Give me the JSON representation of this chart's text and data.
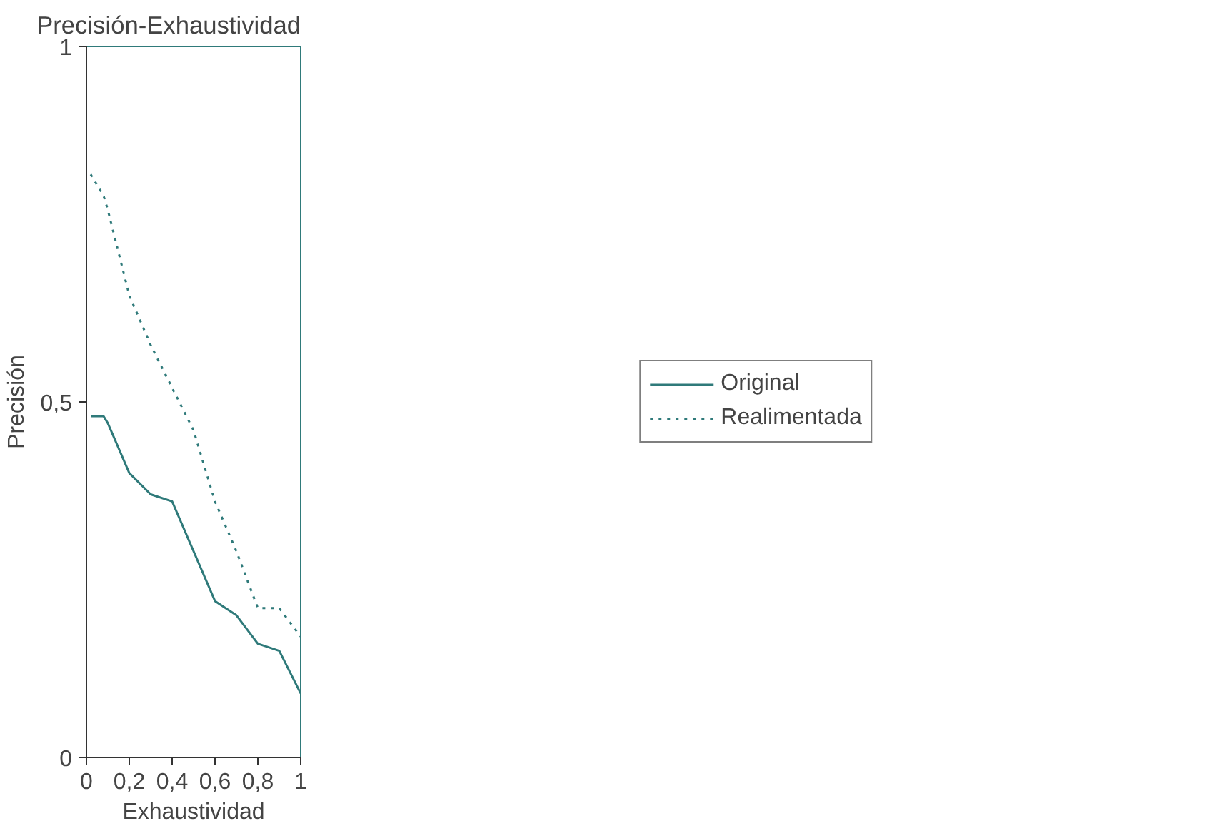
{
  "chart_data": {
    "type": "line",
    "title": "Precisión-Exhaustividad",
    "xlabel": "Exhaustividad",
    "ylabel": "Precisión",
    "x": [
      0.02,
      0.08,
      0.1,
      0.2,
      0.3,
      0.4,
      0.5,
      0.6,
      0.7,
      0.8,
      0.9,
      1.0
    ],
    "series": [
      {
        "name": "Original",
        "color": "#2f7a7a",
        "line_style": "solid",
        "values": [
          0.48,
          0.48,
          0.47,
          0.4,
          0.37,
          0.36,
          0.29,
          0.22,
          0.2,
          0.16,
          0.15,
          0.09
        ]
      },
      {
        "name": "Realimentada",
        "color": "#2f7a7a",
        "line_style": "dotted",
        "values": [
          0.82,
          0.79,
          0.77,
          0.65,
          0.58,
          0.52,
          0.46,
          0.36,
          0.29,
          0.21,
          0.21,
          0.17
        ]
      }
    ],
    "xlim": [
      0,
      1
    ],
    "ylim": [
      0,
      1
    ],
    "xticks": [
      {
        "value": 0,
        "label": "0"
      },
      {
        "value": 0.2,
        "label": "0,2"
      },
      {
        "value": 0.4,
        "label": "0,4"
      },
      {
        "value": 0.6,
        "label": "0,6"
      },
      {
        "value": 0.8,
        "label": "0,8"
      },
      {
        "value": 1,
        "label": "1"
      }
    ],
    "yticks": [
      {
        "value": 0,
        "label": "0"
      },
      {
        "value": 0.5,
        "label": "0,5"
      },
      {
        "value": 1,
        "label": "1"
      }
    ],
    "grid": false,
    "legend": "right",
    "marker": "none"
  }
}
